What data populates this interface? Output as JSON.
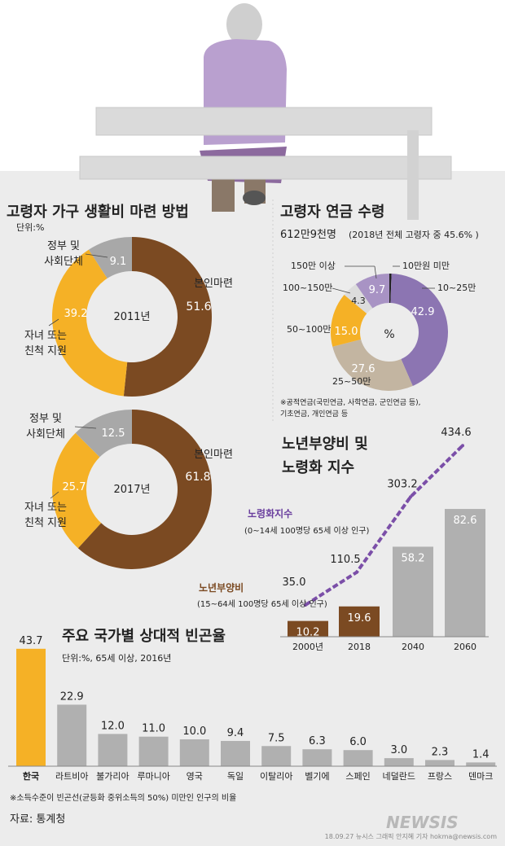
{
  "header_illustration": "elderly-person-on-bench",
  "colors": {
    "brown": "#7b4a22",
    "yellow": "#f5b126",
    "gray": "#a8a8a8",
    "purple_light": "#a893c4",
    "purple": "#8c75b2",
    "purple_line": "#7b4fa8",
    "tan": "#c3b5a1",
    "bar_brown": "#7b4a22",
    "bar_gray": "#b0b0b0",
    "bar_yellow": "#f5b126"
  },
  "chart_data": [
    {
      "type": "pie",
      "id": "living_cost_2011",
      "title": "고령자 가구 생활비 마련 방법",
      "unit": "단위:%",
      "center_label": "2011년",
      "slices": [
        {
          "name": "본인마련",
          "value": 51.6,
          "label": "본인마련"
        },
        {
          "name": "자녀 또는 친척 지원",
          "value": 39.2,
          "label1": "자녀 또는",
          "label2": "친척 지원"
        },
        {
          "name": "정부 및 사회단체",
          "value": 9.1,
          "label1": "정부 및",
          "label2": "사회단체"
        }
      ]
    },
    {
      "type": "pie",
      "id": "living_cost_2017",
      "center_label": "2017년",
      "slices": [
        {
          "name": "본인마련",
          "value": 61.8,
          "label": "본인마련"
        },
        {
          "name": "자녀 또는 친척 지원",
          "value": 25.7,
          "label1": "자녀 또는",
          "label2": "친척 지원"
        },
        {
          "name": "정부 및 사회단체",
          "value": 12.5,
          "label1": "정부 및",
          "label2": "사회단체"
        }
      ]
    },
    {
      "type": "pie",
      "id": "pension",
      "title": "고령자 연금 수령",
      "subtitle_main": "612만9천명",
      "subtitle_note": "(2018년 전체 고령자 중 45.6% )",
      "center_label": "%",
      "slices": [
        {
          "name": "10만원 미만",
          "value": 0.6,
          "value_label": "",
          "label": "10만원 미만"
        },
        {
          "name": "10~25만",
          "value": 42.9,
          "value_label": "42.9",
          "label": "10~25만"
        },
        {
          "name": "25~50만",
          "value": 27.6,
          "value_label": "27.6",
          "label": "25~50만"
        },
        {
          "name": "50~100만",
          "value": 15.0,
          "value_label": "15.0",
          "label": "50~100만"
        },
        {
          "name": "100~150만",
          "value": 4.3,
          "value_label": "4.3",
          "label": "100~150만"
        },
        {
          "name": "150만 이상",
          "value": 9.7,
          "value_label": "9.7",
          "label": "150만 이상"
        }
      ],
      "footnote1": "※공적연금(국민연금, 사학연금, 군인연금 등),",
      "footnote2": "기초연금, 개인연금 등"
    },
    {
      "type": "bar",
      "id": "dependency",
      "title1": "노년부양비 및",
      "title2": "노령화 지수",
      "categories": [
        "2000년",
        "2018",
        "2040",
        "2060"
      ],
      "series": [
        {
          "name": "노년부양비",
          "note": "(15~64세 100명당 65세 이상 인구)",
          "values": [
            10.2,
            19.6,
            58.2,
            82.6
          ],
          "labels": [
            "10.2",
            "19.6",
            "58.2",
            "82.6"
          ]
        },
        {
          "name": "노령화지수",
          "note": "(0~14세 100명당 65세 이상 인구)",
          "type": "line",
          "values": [
            35.0,
            110.5,
            303.2,
            434.6
          ],
          "labels": [
            "35.0",
            "110.5",
            "303.2",
            "434.6"
          ]
        }
      ]
    },
    {
      "type": "bar",
      "id": "poverty",
      "title": "주요 국가별 상대적 빈곤율",
      "unit": "단위:%, 65세 이상, 2016년",
      "categories": [
        "한국",
        "라트비아",
        "불가리아",
        "루마니아",
        "영국",
        "독일",
        "이탈리아",
        "벨기에",
        "스페인",
        "네덜란드",
        "프랑스",
        "덴마크"
      ],
      "values": [
        43.7,
        22.9,
        12.0,
        11.0,
        10.0,
        9.4,
        7.5,
        6.3,
        6.0,
        3.0,
        2.3,
        1.4
      ],
      "labels": [
        "43.7",
        "22.9",
        "12.0",
        "11.0",
        "10.0",
        "9.4",
        "7.5",
        "6.3",
        "6.0",
        "3.0",
        "2.3",
        "1.4"
      ],
      "footnote": "※소득수준이 빈곤선(균등화 중위소득의 50%) 미만인 인구의 비율"
    }
  ],
  "source": "자료: 통계청",
  "credit": "18.09.27  뉴시스 그래픽 안지혜 기자  hokma@newsis.com",
  "watermark": "NEWSIS"
}
